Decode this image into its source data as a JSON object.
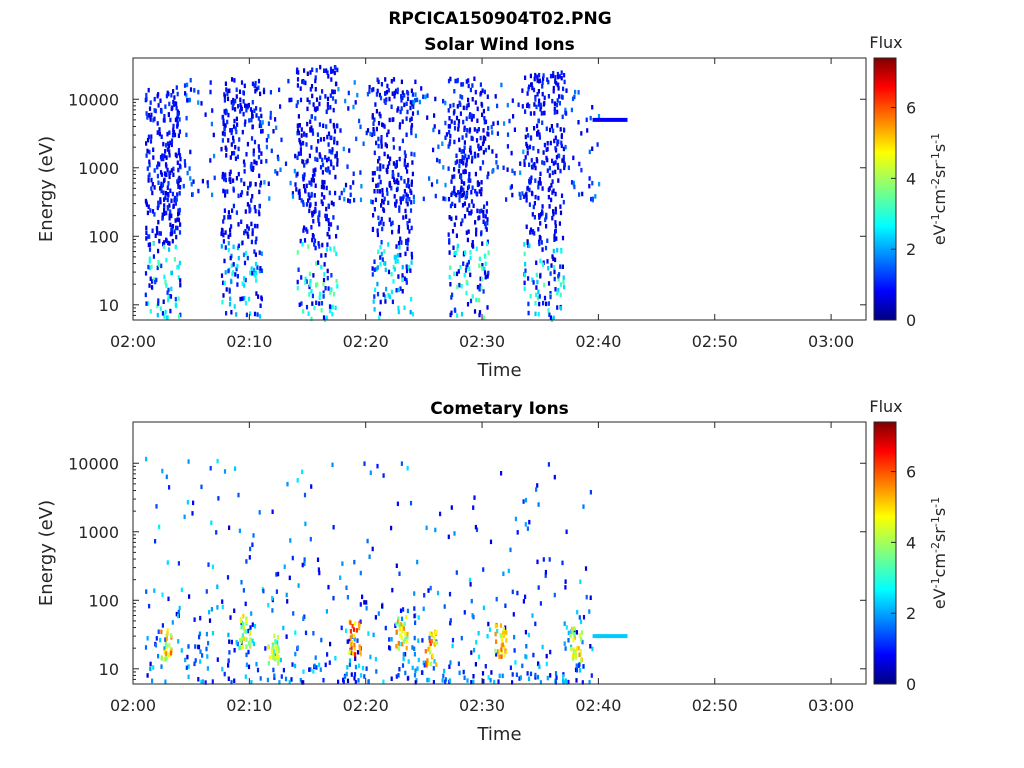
{
  "figure": {
    "suptitle": "RPCICA150904T02.PNG",
    "units_html_note": "",
    "colors": {
      "frame": "#262626",
      "background": "#ffffff"
    }
  },
  "chart_data": [
    {
      "type": "heatmap",
      "title": "Solar Wind Ions",
      "xlabel": "Time",
      "ylabel": "Energy (eV)",
      "xlim": [
        "02:00",
        "03:03"
      ],
      "x_ticks": [
        "02:00",
        "02:10",
        "02:20",
        "02:30",
        "02:40",
        "02:50",
        "03:00"
      ],
      "ylim": [
        6,
        40000
      ],
      "y_scale": "log",
      "y_ticks": [
        "10",
        "100",
        "1000",
        "10000"
      ],
      "y_tick_values": [
        10,
        100,
        1000,
        10000
      ],
      "grid": false,
      "colorbar": {
        "label": "Flux",
        "units": "eV-1cm-2sr-1s-1",
        "range": [
          0,
          7.4
        ],
        "ticks": [
          "0",
          "2",
          "4",
          "6"
        ],
        "tick_values": [
          0,
          2,
          4,
          6
        ],
        "colormap": "jet"
      },
      "sweeps": [
        {
          "start": "02:01",
          "end": "02:04",
          "emax": 15000,
          "emin": 6,
          "low_flux": 2.2
        },
        {
          "start": "02:07.5",
          "end": "02:11",
          "emax": 20000,
          "emin": 6,
          "low_flux": 1.8
        },
        {
          "start": "02:14",
          "end": "02:17.5",
          "emax": 30000,
          "emin": 6,
          "low_flux": 2.6
        },
        {
          "start": "02:20.5",
          "end": "02:24",
          "emax": 20000,
          "emin": 6,
          "low_flux": 2.0
        },
        {
          "start": "02:27",
          "end": "02:30.5",
          "emax": 20000,
          "emin": 6,
          "low_flux": 2.4
        },
        {
          "start": "02:33.5",
          "end": "02:37",
          "emax": 25000,
          "emin": 6,
          "low_flux": 2.3
        }
      ],
      "trailing_line": {
        "start": "02:39.5",
        "end": "02:42.5",
        "energy": 5000,
        "flux": 0.9
      }
    },
    {
      "type": "heatmap",
      "title": "Cometary Ions",
      "xlabel": "Time",
      "ylabel": "Energy (eV)",
      "xlim": [
        "02:00",
        "03:03"
      ],
      "x_ticks": [
        "02:00",
        "02:10",
        "02:20",
        "02:30",
        "02:40",
        "02:50",
        "03:00"
      ],
      "ylim": [
        6,
        40000
      ],
      "y_scale": "log",
      "y_ticks": [
        "10",
        "100",
        "1000",
        "10000"
      ],
      "y_tick_values": [
        10,
        100,
        1000,
        10000
      ],
      "grid": false,
      "colorbar": {
        "label": "Flux",
        "units": "eV-1cm-2sr-1s-1",
        "range": [
          0,
          7.4
        ],
        "ticks": [
          "0",
          "2",
          "4",
          "6"
        ],
        "tick_values": [
          0,
          2,
          4,
          6
        ],
        "colormap": "jet"
      },
      "hotspots": [
        {
          "time": "02:02.8",
          "energy": 22,
          "flux": 5.8
        },
        {
          "time": "02:09.5",
          "energy": 35,
          "flux": 5.0
        },
        {
          "time": "02:12",
          "energy": 18,
          "flux": 5.2
        },
        {
          "time": "02:19",
          "energy": 28,
          "flux": 6.4
        },
        {
          "time": "02:23",
          "energy": 35,
          "flux": 5.6
        },
        {
          "time": "02:25.5",
          "energy": 20,
          "flux": 6.2
        },
        {
          "time": "02:31.5",
          "energy": 25,
          "flux": 6.0
        },
        {
          "time": "02:38",
          "energy": 22,
          "flux": 5.4
        }
      ],
      "trailing_line": {
        "start": "02:39.5",
        "end": "02:42.5",
        "energy": 30,
        "flux": 2.4
      }
    }
  ]
}
